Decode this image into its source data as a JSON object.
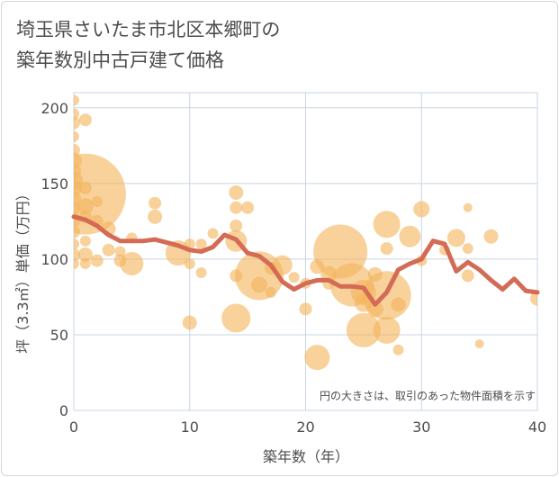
{
  "title": {
    "line1": "埼玉県さいたま市北区本郷町の",
    "line2": "築年数別中古戸建て価格"
  },
  "chart_data": {
    "type": "scatter",
    "xlabel": "築年数（年）",
    "ylabel": "坪（3.3㎡）単価（万円）",
    "xlim": [
      0,
      40
    ],
    "ylim": [
      0,
      210
    ],
    "xticks": [
      0,
      10,
      20,
      30,
      40
    ],
    "yticks": [
      0,
      50,
      100,
      150,
      200
    ],
    "grid": true,
    "note": "円の大きさは、取引のあった物件面積を示す",
    "colors": {
      "bubble": "#f3b55d",
      "line": "#d36b55",
      "grid": "#c9d4e3"
    },
    "bubbles": [
      {
        "x": 0,
        "y": 205,
        "s": 6
      },
      {
        "x": 0,
        "y": 196,
        "s": 6
      },
      {
        "x": 0,
        "y": 190,
        "s": 7
      },
      {
        "x": 0,
        "y": 181,
        "s": 6
      },
      {
        "x": 0,
        "y": 172,
        "s": 7
      },
      {
        "x": 0,
        "y": 165,
        "s": 9
      },
      {
        "x": 0,
        "y": 158,
        "s": 8
      },
      {
        "x": 0,
        "y": 152,
        "s": 10
      },
      {
        "x": 0,
        "y": 147,
        "s": 9
      },
      {
        "x": 0,
        "y": 140,
        "s": 8
      },
      {
        "x": 0,
        "y": 133,
        "s": 7
      },
      {
        "x": 0,
        "y": 126,
        "s": 8
      },
      {
        "x": 0,
        "y": 118,
        "s": 7
      },
      {
        "x": 0,
        "y": 110,
        "s": 6
      },
      {
        "x": 0,
        "y": 103,
        "s": 7
      },
      {
        "x": 0,
        "y": 97,
        "s": 6
      },
      {
        "x": 1,
        "y": 143,
        "s": 45
      },
      {
        "x": 1,
        "y": 192,
        "s": 7
      },
      {
        "x": 1,
        "y": 147,
        "s": 7
      },
      {
        "x": 1,
        "y": 135,
        "s": 9
      },
      {
        "x": 1,
        "y": 128,
        "s": 7
      },
      {
        "x": 1,
        "y": 112,
        "s": 6
      },
      {
        "x": 1,
        "y": 103,
        "s": 8
      },
      {
        "x": 1,
        "y": 97,
        "s": 6
      },
      {
        "x": 2,
        "y": 138,
        "s": 6
      },
      {
        "x": 2,
        "y": 125,
        "s": 7
      },
      {
        "x": 2,
        "y": 99,
        "s": 7
      },
      {
        "x": 3,
        "y": 120,
        "s": 8
      },
      {
        "x": 3,
        "y": 106,
        "s": 7
      },
      {
        "x": 4,
        "y": 105,
        "s": 6
      },
      {
        "x": 4,
        "y": 99,
        "s": 7
      },
      {
        "x": 5,
        "y": 114,
        "s": 6
      },
      {
        "x": 5,
        "y": 97,
        "s": 13
      },
      {
        "x": 7,
        "y": 137,
        "s": 7
      },
      {
        "x": 7,
        "y": 128,
        "s": 8
      },
      {
        "x": 9,
        "y": 104,
        "s": 14
      },
      {
        "x": 10,
        "y": 110,
        "s": 6
      },
      {
        "x": 10,
        "y": 97,
        "s": 6
      },
      {
        "x": 10,
        "y": 58,
        "s": 8
      },
      {
        "x": 11,
        "y": 110,
        "s": 6
      },
      {
        "x": 11,
        "y": 91,
        "s": 6
      },
      {
        "x": 12,
        "y": 117,
        "s": 6
      },
      {
        "x": 14,
        "y": 144,
        "s": 8
      },
      {
        "x": 14,
        "y": 134,
        "s": 7
      },
      {
        "x": 14,
        "y": 122,
        "s": 7
      },
      {
        "x": 14,
        "y": 112,
        "s": 12
      },
      {
        "x": 14,
        "y": 89,
        "s": 7
      },
      {
        "x": 14,
        "y": 61,
        "s": 16
      },
      {
        "x": 15,
        "y": 134,
        "s": 7
      },
      {
        "x": 16,
        "y": 89,
        "s": 27
      },
      {
        "x": 16,
        "y": 83,
        "s": 9
      },
      {
        "x": 17,
        "y": 94,
        "s": 7
      },
      {
        "x": 17,
        "y": 78,
        "s": 6
      },
      {
        "x": 18,
        "y": 96,
        "s": 11
      },
      {
        "x": 19,
        "y": 88,
        "s": 6
      },
      {
        "x": 20,
        "y": 84,
        "s": 6
      },
      {
        "x": 20,
        "y": 67,
        "s": 7
      },
      {
        "x": 21,
        "y": 95,
        "s": 8
      },
      {
        "x": 21,
        "y": 35,
        "s": 14
      },
      {
        "x": 22,
        "y": 90,
        "s": 9
      },
      {
        "x": 22,
        "y": 84,
        "s": 7
      },
      {
        "x": 23,
        "y": 105,
        "s": 30
      },
      {
        "x": 24,
        "y": 83,
        "s": 24
      },
      {
        "x": 25,
        "y": 78,
        "s": 14
      },
      {
        "x": 25,
        "y": 71,
        "s": 10
      },
      {
        "x": 25,
        "y": 53,
        "s": 19
      },
      {
        "x": 26,
        "y": 90,
        "s": 8
      },
      {
        "x": 26,
        "y": 67,
        "s": 9
      },
      {
        "x": 27,
        "y": 123,
        "s": 15
      },
      {
        "x": 27,
        "y": 107,
        "s": 7
      },
      {
        "x": 27,
        "y": 76,
        "s": 27
      },
      {
        "x": 27,
        "y": 53,
        "s": 15
      },
      {
        "x": 28,
        "y": 70,
        "s": 8
      },
      {
        "x": 28,
        "y": 40,
        "s": 6
      },
      {
        "x": 29,
        "y": 115,
        "s": 12
      },
      {
        "x": 30,
        "y": 133,
        "s": 9
      },
      {
        "x": 30,
        "y": 99,
        "s": 6
      },
      {
        "x": 32,
        "y": 106,
        "s": 6
      },
      {
        "x": 33,
        "y": 114,
        "s": 10
      },
      {
        "x": 34,
        "y": 134,
        "s": 5
      },
      {
        "x": 34,
        "y": 107,
        "s": 6
      },
      {
        "x": 34,
        "y": 89,
        "s": 7
      },
      {
        "x": 35,
        "y": 44,
        "s": 5
      },
      {
        "x": 36,
        "y": 115,
        "s": 8
      },
      {
        "x": 40,
        "y": 74,
        "s": 8
      }
    ],
    "series": [
      {
        "x": [
          0,
          1,
          2,
          3,
          4,
          5,
          6,
          7,
          8,
          9,
          10,
          11,
          12,
          13,
          14,
          15,
          16,
          17,
          18,
          19,
          20,
          21,
          22,
          23,
          24,
          25,
          26,
          27,
          28,
          29,
          30,
          31,
          32,
          33,
          34,
          35,
          36,
          37,
          38,
          39,
          40
        ],
        "values": [
          128,
          126,
          122,
          116,
          112,
          112,
          112,
          113,
          111,
          109,
          106,
          105,
          108,
          116,
          113,
          104,
          102,
          96,
          85,
          80,
          84,
          86,
          86,
          82,
          82,
          81,
          70,
          78,
          93,
          97,
          100,
          112,
          110,
          92,
          98,
          93,
          86,
          80,
          87,
          79,
          78
        ]
      }
    ]
  }
}
